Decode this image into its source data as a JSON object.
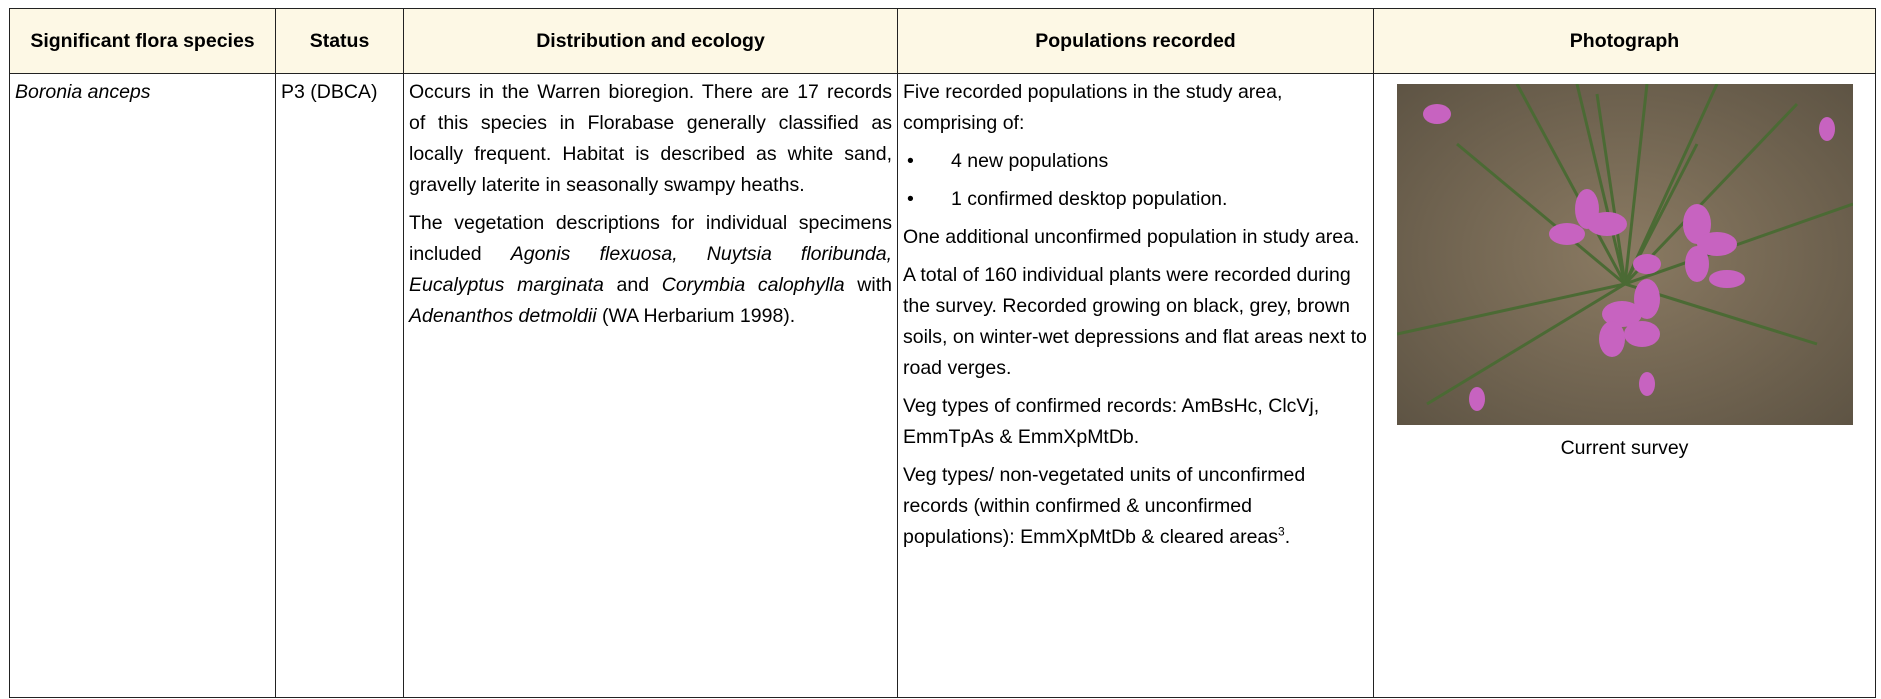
{
  "table": {
    "headers": [
      "Significant flora species",
      "Status",
      "Distribution and ecology",
      "Populations recorded",
      "Photograph"
    ],
    "rows": [
      [
        [
          {
            "kind": "p",
            "runs": [
              {
                "text": "Boronia anceps",
                "style": "italic"
              }
            ]
          }
        ],
        [
          {
            "kind": "p",
            "runs": [
              {
                "text": "P3 (DBCA)"
              }
            ]
          }
        ],
        [
          {
            "kind": "p",
            "runs": [
              {
                "text": "Occurs in the Warren bioregion. There are 17 records of this species in Florabase generally classified as locally frequent. Habitat is described as white sand, gravelly laterite in seasonally swampy heaths."
              }
            ]
          },
          {
            "kind": "p",
            "runs": [
              {
                "text": "The vegetation descriptions for individual specimens included "
              },
              {
                "text": "Agonis flexuosa, Nuytsia floribunda, Eucalyptus marginata",
                "style": "italic"
              },
              {
                "text": " and "
              },
              {
                "text": "Corymbia calophylla",
                "style": "italic"
              },
              {
                "text": " with "
              },
              {
                "text": "Adenanthos detmoldii",
                "style": "italic"
              },
              {
                "text": " (WA Herbarium 1998)."
              }
            ]
          }
        ],
        [
          {
            "kind": "p",
            "runs": [
              {
                "text": "Five recorded populations in the study area, comprising of:"
              }
            ]
          },
          {
            "kind": "bullet",
            "runs": [
              {
                "text": "4 new populations"
              }
            ]
          },
          {
            "kind": "bullet",
            "runs": [
              {
                "text": "1 confirmed desktop population."
              }
            ]
          },
          {
            "kind": "p",
            "runs": [
              {
                "text": "One additional unconfirmed population in study area."
              }
            ]
          },
          {
            "kind": "p",
            "runs": [
              {
                "text": "A total of 160 individual plants were recorded during the survey. Recorded growing on black, grey, brown soils, on winter-wet depressions and flat areas next to road verges."
              }
            ]
          },
          {
            "kind": "p",
            "runs": [
              {
                "text": "Veg types of confirmed records: AmBsHc, ClcVj, EmmTpAs & EmmXpMtDb."
              }
            ]
          },
          {
            "kind": "p",
            "runs": [
              {
                "text": "Veg types/ non-vegetated units of unconfirmed records (within confirmed & unconfirmed populations): EmmXpMtDb & cleared areas"
              },
              {
                "text": "3",
                "style": "sup"
              },
              {
                "text": "."
              }
            ]
          }
        ],
        [
          {
            "kind": "photo",
            "runs": [
              {
                "text": "Current survey"
              }
            ]
          }
        ]
      ]
    ]
  }
}
